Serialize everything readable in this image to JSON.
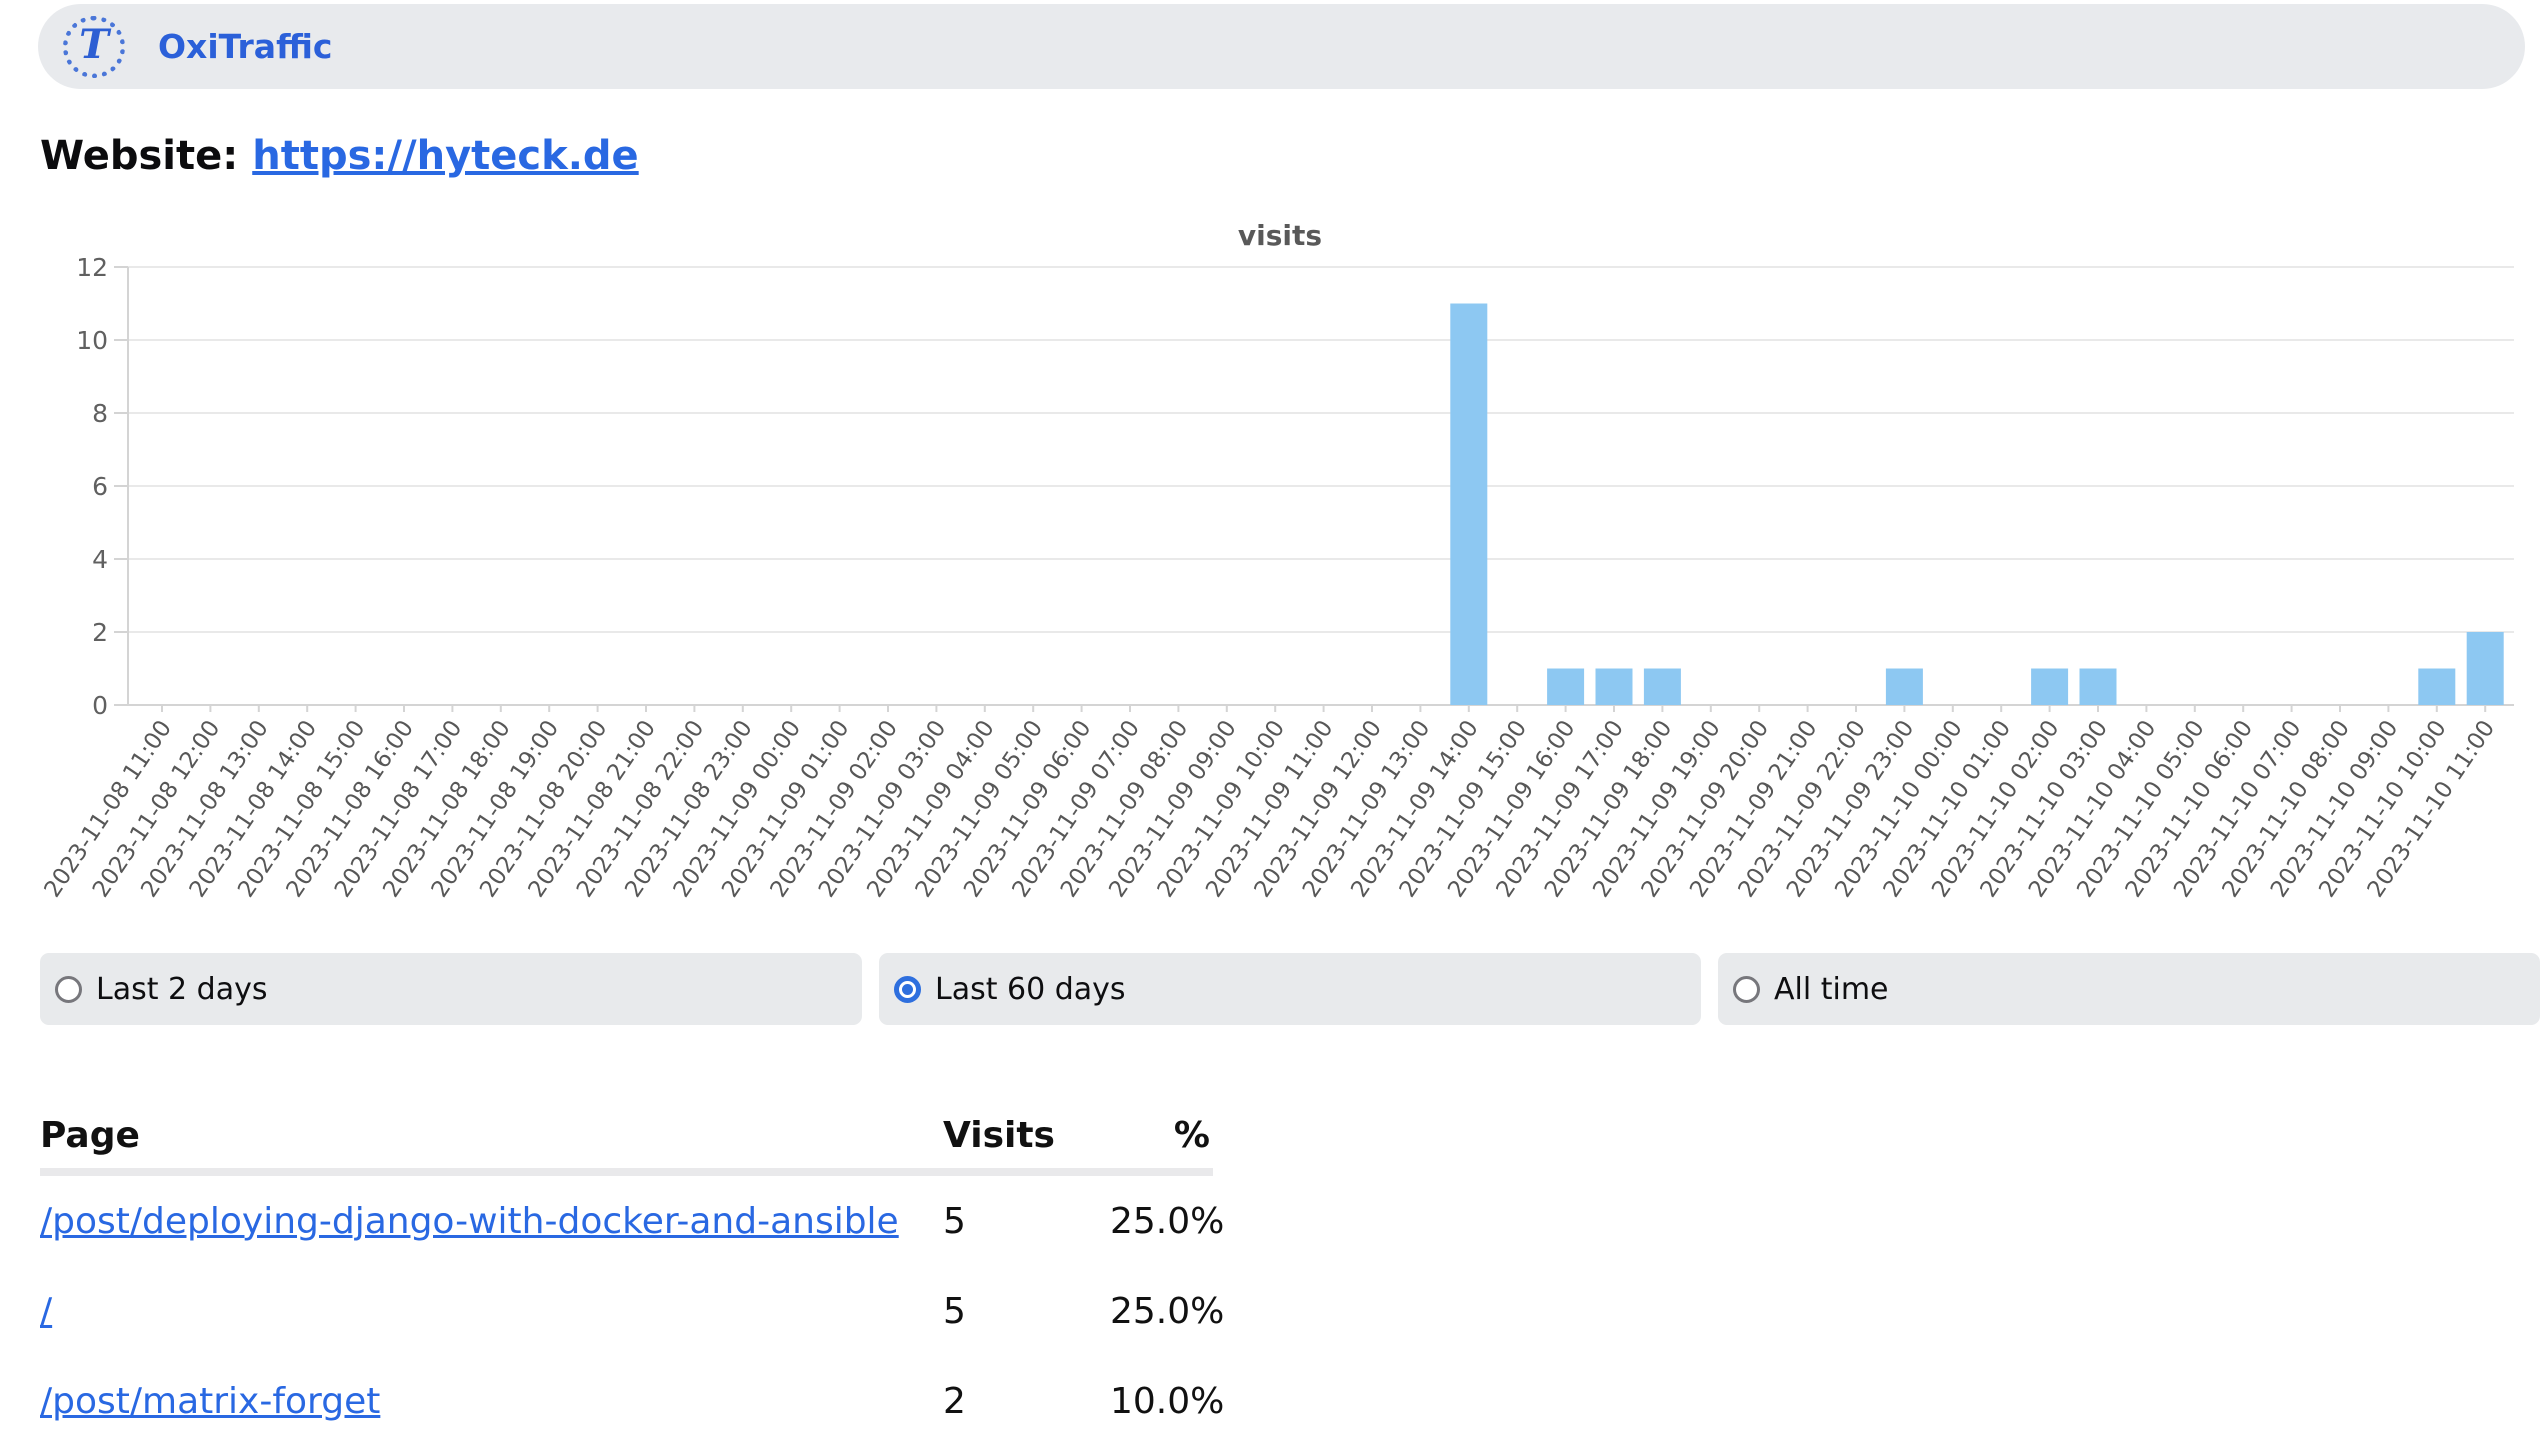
{
  "header": {
    "brand": "OxiTraffic",
    "logo_glyph": "T"
  },
  "website": {
    "label": "Website:",
    "url": "https://hyteck.de"
  },
  "chart_data": {
    "type": "bar",
    "title": "visits",
    "ylabel": "",
    "xlabel": "",
    "ylim": [
      0,
      12
    ],
    "yticks": [
      0,
      2,
      4,
      6,
      8,
      10,
      12
    ],
    "grid": true,
    "bar_color": "#8dc8f2",
    "categories": [
      "2023-11-08 11:00",
      "2023-11-08 12:00",
      "2023-11-08 13:00",
      "2023-11-08 14:00",
      "2023-11-08 15:00",
      "2023-11-08 16:00",
      "2023-11-08 17:00",
      "2023-11-08 18:00",
      "2023-11-08 19:00",
      "2023-11-08 20:00",
      "2023-11-08 21:00",
      "2023-11-08 22:00",
      "2023-11-08 23:00",
      "2023-11-09 00:00",
      "2023-11-09 01:00",
      "2023-11-09 02:00",
      "2023-11-09 03:00",
      "2023-11-09 04:00",
      "2023-11-09 05:00",
      "2023-11-09 06:00",
      "2023-11-09 07:00",
      "2023-11-09 08:00",
      "2023-11-09 09:00",
      "2023-11-09 10:00",
      "2023-11-09 11:00",
      "2023-11-09 12:00",
      "2023-11-09 13:00",
      "2023-11-09 14:00",
      "2023-11-09 15:00",
      "2023-11-09 16:00",
      "2023-11-09 17:00",
      "2023-11-09 18:00",
      "2023-11-09 19:00",
      "2023-11-09 20:00",
      "2023-11-09 21:00",
      "2023-11-09 22:00",
      "2023-11-09 23:00",
      "2023-11-10 00:00",
      "2023-11-10 01:00",
      "2023-11-10 02:00",
      "2023-11-10 03:00",
      "2023-11-10 04:00",
      "2023-11-10 05:00",
      "2023-11-10 06:00",
      "2023-11-10 07:00",
      "2023-11-10 08:00",
      "2023-11-10 09:00",
      "2023-11-10 10:00",
      "2023-11-10 11:00"
    ],
    "values": [
      0,
      0,
      0,
      0,
      0,
      0,
      0,
      0,
      0,
      0,
      0,
      0,
      0,
      0,
      0,
      0,
      0,
      0,
      0,
      0,
      0,
      0,
      0,
      0,
      0,
      0,
      0,
      11,
      0,
      1,
      1,
      1,
      0,
      0,
      0,
      0,
      1,
      0,
      0,
      1,
      1,
      0,
      0,
      0,
      0,
      0,
      0,
      1,
      2
    ]
  },
  "time_range_options": [
    {
      "label": "Last 2 days",
      "selected": false
    },
    {
      "label": "Last 60 days",
      "selected": true
    },
    {
      "label": "All time",
      "selected": false
    }
  ],
  "table": {
    "columns": {
      "page": "Page",
      "visits": "Visits",
      "percent": "%"
    },
    "rows": [
      {
        "page": "/post/deploying-django-with-docker-and-ansible",
        "visits": "5",
        "percent": "25.0%"
      },
      {
        "page": "/",
        "visits": "5",
        "percent": "25.0%"
      },
      {
        "page": "/post/matrix-forget",
        "visits": "2",
        "percent": "10.0%"
      }
    ]
  },
  "colors": {
    "accent_blue": "#2968e2",
    "brand_blue": "#2b60d9",
    "radio_blue": "#2e6fde",
    "bar_blue": "#8dc8f2",
    "panel_gray": "#e8eaed",
    "grid_gray": "#e9e9e9"
  }
}
